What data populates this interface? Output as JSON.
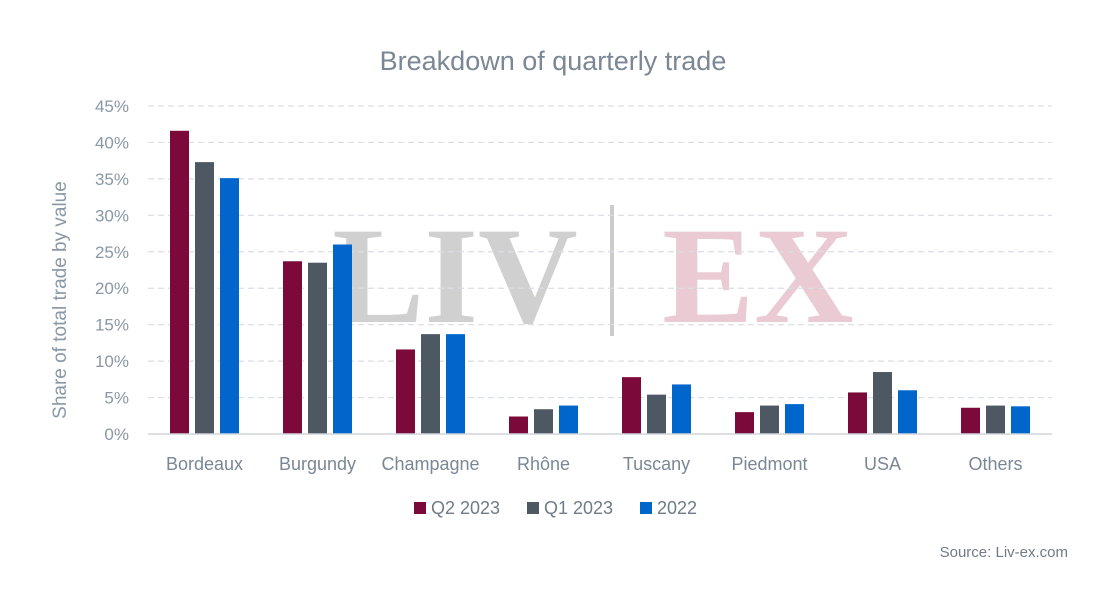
{
  "chart_data": {
    "type": "bar",
    "title": "Breakdown of quarterly trade",
    "ylabel": "Share of total trade by value",
    "xlabel": "",
    "ylim": [
      0,
      45
    ],
    "yticks": [
      "0%",
      "5%",
      "10%",
      "15%",
      "20%",
      "25%",
      "30%",
      "35%",
      "40%",
      "45%"
    ],
    "grid": true,
    "legend_position": "bottom",
    "categories": [
      "Bordeaux",
      "Burgundy",
      "Champagne",
      "Rhône",
      "Tuscany",
      "Piedmont",
      "USA",
      "Others"
    ],
    "series": [
      {
        "name": "Q2 2023",
        "color": "#7b0a3a",
        "values": [
          41.6,
          23.7,
          11.6,
          2.4,
          7.8,
          3.0,
          5.7,
          3.6
        ]
      },
      {
        "name": "Q1 2023",
        "color": "#4d5863",
        "values": [
          37.3,
          23.5,
          13.7,
          3.4,
          5.4,
          3.9,
          8.5,
          3.9
        ]
      },
      {
        "name": "2022",
        "color": "#0066cc",
        "values": [
          35.1,
          26.0,
          13.7,
          3.9,
          6.8,
          4.1,
          6.0,
          3.8
        ]
      }
    ]
  },
  "watermark": {
    "text_left": "LIV",
    "text_right": "EX",
    "left_color": "#c8c8c8",
    "right_color": "#e8c3cc"
  },
  "source": "Source: Liv-ex.com"
}
